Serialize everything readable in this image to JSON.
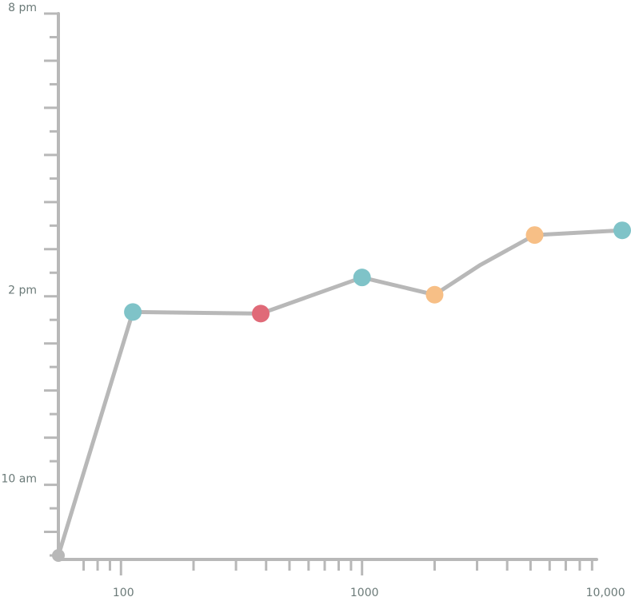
{
  "chart_data": {
    "type": "line",
    "x_scale": "log",
    "xlim": [
      55,
      12000
    ],
    "ylim_minutes": [
      510,
      1200
    ],
    "x_tick_labels": [
      {
        "value": 100,
        "label": "100"
      },
      {
        "value": 1000,
        "label": "1000"
      },
      {
        "value": 10000,
        "label": "10,000"
      }
    ],
    "y_tick_labels": [
      {
        "value": 600,
        "label": "10 am"
      },
      {
        "value": 840,
        "label": "2 pm"
      },
      {
        "value": 1200,
        "label": "8 pm"
      }
    ],
    "series": [
      {
        "line_color": "#b8b8b8",
        "points": [
          {
            "x": 55,
            "y": 510,
            "color": "#b8b8b8"
          },
          {
            "x": 112,
            "y": 820,
            "color": "#7fc3c8"
          },
          {
            "x": 380,
            "y": 818,
            "color": "#e06a78"
          },
          {
            "x": 1000,
            "y": 864,
            "color": "#7fc3c8"
          },
          {
            "x": 2000,
            "y": 842,
            "color": "#f7bf86"
          },
          {
            "x": 3100,
            "y": 880,
            "color": null
          },
          {
            "x": 5200,
            "y": 918,
            "color": "#f7bf86"
          },
          {
            "x": 12000,
            "y": 924,
            "color": "#7fc3c8"
          }
        ]
      }
    ],
    "grid": false,
    "legend": "none",
    "title": "",
    "xlabel": "",
    "ylabel": ""
  },
  "colors": {
    "axis": "#b8b8b8",
    "text": "#6b7a78"
  }
}
